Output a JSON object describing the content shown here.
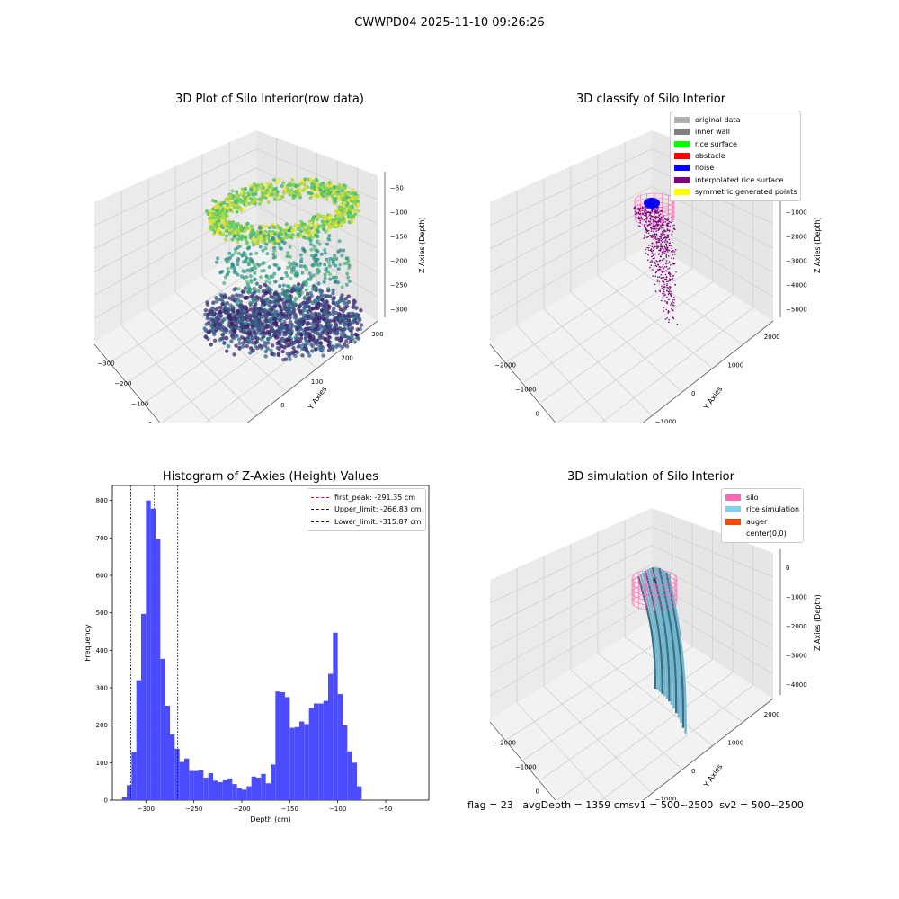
{
  "suptitle": "CWWPD04 2025-11-10 09:26:26",
  "footer": {
    "flag": "flag = 23",
    "avg": "avgDepth = 1359 cmsv1 = 500~2500",
    "sv2": "sv2 = 500~2500"
  },
  "chart_data": [
    {
      "type": "scatter",
      "title": "3D Plot of Silo Interior(row data)",
      "xlabel": "X Axies",
      "ylabel": "Y Axies",
      "zlabel": "Z Axies (Depth)",
      "x_ticks": [
        "−300",
        "−200",
        "−100",
        "0",
        "100",
        "200"
      ],
      "y_ticks": [
        "−200",
        "−100",
        "0",
        "100",
        "200",
        "300"
      ],
      "z_ticks": [
        "−50",
        "−100",
        "−150",
        "−200",
        "−250",
        "−300"
      ],
      "colormap": "viridis"
    },
    {
      "type": "scatter",
      "title": "3D classify of Silo Interior",
      "xlabel": "X Axies",
      "ylabel": "Y Axies",
      "zlabel": "Z Axies (Depth)",
      "x_ticks": [
        "−2000",
        "−1000",
        "0",
        "1000",
        "2000"
      ],
      "y_ticks": [
        "−2000",
        "−1000",
        "0",
        "1000",
        "2000"
      ],
      "z_ticks": [
        "0",
        "−1000",
        "−2000",
        "−3000",
        "−4000",
        "−5000"
      ],
      "legend": [
        {
          "label": "original data",
          "color": "#b0b0b0"
        },
        {
          "label": "inner wall",
          "color": "#808080"
        },
        {
          "label": "rice surface",
          "color": "#00ff00"
        },
        {
          "label": "obstacle",
          "color": "#ff0000"
        },
        {
          "label": "noise",
          "color": "#0000ff"
        },
        {
          "label": "interpolated rice surface",
          "color": "#800080"
        },
        {
          "label": "symmetric generated points",
          "color": "#ffff00"
        }
      ],
      "legend_position": "top-right"
    },
    {
      "type": "bar",
      "title": "Histogram of Z-Axies (Height) Values",
      "xlabel": "Depth (cm)",
      "ylabel": "Frequency",
      "bin_width": 5,
      "bin_start": -325,
      "values": [
        8,
        40,
        128,
        320,
        497,
        800,
        778,
        697,
        377,
        252,
        175,
        137,
        102,
        111,
        78,
        78,
        80,
        60,
        72,
        52,
        48,
        53,
        58,
        43,
        32,
        28,
        37,
        63,
        60,
        70,
        45,
        95,
        290,
        288,
        275,
        193,
        195,
        210,
        203,
        246,
        258,
        258,
        265,
        337,
        447,
        283,
        200,
        130,
        100,
        37
      ],
      "xlim": [
        -335,
        -5
      ],
      "ylim": [
        0,
        840
      ],
      "xticks": [
        -300,
        -250,
        -200,
        -150,
        -100,
        -50
      ],
      "yticks": [
        0,
        100,
        200,
        300,
        400,
        500,
        600,
        700,
        800
      ],
      "bar_color": "#4c4cff",
      "vlines": [
        {
          "label": "first_peak: -291.35 cm",
          "x": -291.35,
          "color": "#ff0000"
        },
        {
          "label": "Upper_limit: -266.83 cm",
          "x": -266.83,
          "color": "#0000aa"
        },
        {
          "label": "Lower_limit: -315.87 cm",
          "x": -315.87,
          "color": "#0000aa"
        }
      ],
      "legend_position": "top-right"
    },
    {
      "type": "surface",
      "title": "3D simulation of Silo Interior",
      "xlabel": "X Axies",
      "ylabel": "Y Axies",
      "zlabel": "Z Axies (Depth)",
      "x_ticks": [
        "−2000",
        "−1000",
        "0",
        "1000",
        "2000"
      ],
      "y_ticks": [
        "−2000",
        "−1000",
        "0",
        "1000",
        "2000"
      ],
      "z_ticks": [
        "0",
        "−1000",
        "−2000",
        "−3000",
        "−4000"
      ],
      "legend": [
        {
          "label": "silo",
          "color": "#ff69b4"
        },
        {
          "label": "rice simulation",
          "color": "#87ceeb"
        },
        {
          "label": "auger",
          "color": "#ff4500"
        },
        {
          "label": "center(0,0)",
          "color": ""
        }
      ],
      "legend_position": "top-right"
    }
  ]
}
